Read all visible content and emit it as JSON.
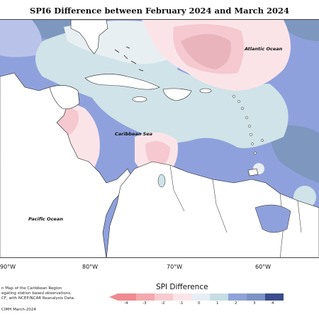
{
  "title": "SPI6 Difference between February 2024 and March 2024",
  "labels": {
    "atlantic": "Atlantic Ocean",
    "caribbean": "Caribbean Sea",
    "pacific": "Pacific Ocean"
  },
  "lon_labels": [
    "90°W",
    "80°W",
    "70°W",
    "60°W"
  ],
  "credit_lines": [
    "n Map of the Caribbean Region",
    "egating station based observations,",
    "CF, with NCEP/NCAR Reanalysis Data.",
    "CIMH March-2024"
  ],
  "legend": {
    "title": "SPI Difference",
    "ticks": [
      "-4",
      "-3",
      "-2",
      "-1",
      "0",
      "1",
      "2",
      "3",
      "4"
    ],
    "colors": [
      "#f08a90",
      "#f3a9ad",
      "#f8cbd0",
      "#fbe4e8",
      "#e7eef3",
      "#c5dde3",
      "#8fa3d8",
      "#7b93c4",
      "#3a4c8c"
    ]
  },
  "colors": {
    "strong_blue": "#8fa1dc",
    "mid_blue": "#b9c2e8",
    "light_blue": "#cfe3e8",
    "very_light": "#e8eff2",
    "light_pink": "#fbe4e8",
    "pink": "#f6c8cf",
    "deep_pink": "#eab4bc",
    "slate": "#7d97bf",
    "land": "#ffffff"
  }
}
